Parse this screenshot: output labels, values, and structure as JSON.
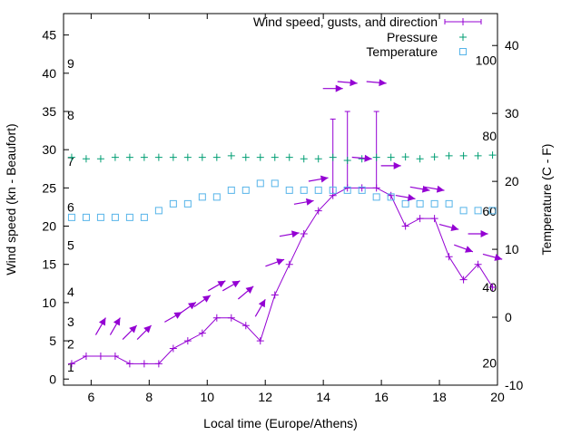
{
  "chart_data": {
    "type": "line",
    "xlabel": "Local time (Europe/Athens)",
    "ylabel": "Wind speed (kn - Beaufort)",
    "y2label": "Temperature (C - F)",
    "xlim": [
      5.05,
      20
    ],
    "ylim": [
      -0.8,
      47.8
    ],
    "y2lim": [
      -10,
      44.7
    ],
    "xticks": [
      6,
      8,
      10,
      12,
      14,
      16,
      18,
      20
    ],
    "yticks": [
      0,
      5,
      10,
      15,
      20,
      25,
      30,
      35,
      40,
      45
    ],
    "y2ticks": [
      -10,
      0,
      10,
      20,
      30,
      40
    ],
    "beaufort_labels": [
      {
        "label": "1",
        "at": 1.6
      },
      {
        "label": "2",
        "at": 4.6
      },
      {
        "label": "3",
        "at": 7.5
      },
      {
        "label": "4",
        "at": 11.4
      },
      {
        "label": "5",
        "at": 17.5
      },
      {
        "label": "6",
        "at": 22.5
      },
      {
        "label": "7",
        "at": 28.5
      },
      {
        "label": "8",
        "at": 34.5
      },
      {
        "label": "9",
        "at": 41.3
      }
    ],
    "fahrenheit_labels": [
      {
        "label": "20",
        "at": -6.7
      },
      {
        "label": "40",
        "at": 4.4
      },
      {
        "label": "60",
        "at": 15.6
      },
      {
        "label": "80",
        "at": 26.7
      },
      {
        "label": "100",
        "at": 37.8
      }
    ],
    "legend": {
      "position": "top-right",
      "entries": [
        "Wind speed, gusts, and direction",
        "Pressure",
        "Temperature"
      ]
    },
    "x_start": 5.33,
    "x_step": 0.5,
    "series": [
      {
        "name": "Wind speed, gusts, and direction",
        "color": "#9400d3",
        "values": [
          2,
          3,
          3,
          3,
          2,
          2,
          2,
          4,
          5,
          6,
          8,
          8,
          7,
          5,
          11,
          15,
          19,
          22,
          24,
          25,
          25,
          25,
          24,
          20,
          21,
          21,
          16,
          13,
          15,
          12
        ],
        "gusts": [
          null,
          null,
          null,
          null,
          null,
          null,
          null,
          null,
          null,
          null,
          null,
          null,
          null,
          null,
          null,
          null,
          null,
          null,
          34,
          35,
          null,
          35,
          null,
          null,
          null,
          null,
          null,
          null,
          null,
          null
        ]
      },
      {
        "name": "Pressure",
        "color": "#009e73",
        "values": [
          29.0,
          28.8,
          28.8,
          29.0,
          29.0,
          29.0,
          29.0,
          29.0,
          29.0,
          29.0,
          29.0,
          29.2,
          29.0,
          29.0,
          29.0,
          29.0,
          28.8,
          28.8,
          29.0,
          28.6,
          28.8,
          29.0,
          29.0,
          29.05,
          28.8,
          29.05,
          29.2,
          29.2,
          29.2,
          29.3
        ]
      },
      {
        "name": "Temperature",
        "color": "#56b4e9",
        "axis": "y2",
        "values": [
          14.7,
          14.7,
          14.7,
          14.7,
          14.7,
          14.7,
          15.7,
          16.7,
          16.7,
          17.7,
          17.7,
          18.7,
          18.7,
          19.7,
          19.7,
          18.7,
          18.7,
          18.7,
          18.7,
          18.7,
          18.7,
          17.7,
          17.7,
          16.7,
          16.7,
          16.7,
          16.7,
          15.7,
          15.7,
          15.7
        ]
      }
    ],
    "direction_arrows": [
      {
        "i": 2,
        "level": 6.9,
        "angle": 60
      },
      {
        "i": 3,
        "level": 6.9,
        "angle": 60
      },
      {
        "i": 4,
        "level": 6.1,
        "angle": 45
      },
      {
        "i": 5,
        "level": 6.1,
        "angle": 45
      },
      {
        "i": 7,
        "level": 8.1,
        "angle": 30
      },
      {
        "i": 8,
        "level": 9.3,
        "angle": 35
      },
      {
        "i": 9,
        "level": 10.2,
        "angle": 35
      },
      {
        "i": 10,
        "level": 12.2,
        "angle": 30
      },
      {
        "i": 11,
        "level": 12.2,
        "angle": 30
      },
      {
        "i": 12,
        "level": 11.3,
        "angle": 40
      },
      {
        "i": 13,
        "level": 9.3,
        "angle": 60
      },
      {
        "i": 14,
        "level": 15.2,
        "angle": 20
      },
      {
        "i": 15,
        "level": 18.9,
        "angle": 10
      },
      {
        "i": 16,
        "level": 23.1,
        "angle": 10
      },
      {
        "i": 17,
        "level": 26.1,
        "angle": 10
      },
      {
        "i": 18,
        "level": 38.0,
        "angle": 0
      },
      {
        "i": 19,
        "level": 38.8,
        "angle": -5
      },
      {
        "i": 20,
        "level": 28.9,
        "angle": -5
      },
      {
        "i": 21,
        "level": 38.8,
        "angle": -5
      },
      {
        "i": 22,
        "level": 27.9,
        "angle": 0
      },
      {
        "i": 23,
        "level": 23.8,
        "angle": -10
      },
      {
        "i": 24,
        "level": 24.9,
        "angle": -10
      },
      {
        "i": 25,
        "level": 24.9,
        "angle": -10
      },
      {
        "i": 26,
        "level": 19.9,
        "angle": -15
      },
      {
        "i": 27,
        "level": 17.1,
        "angle": -20
      },
      {
        "i": 28,
        "level": 19.0,
        "angle": 0
      },
      {
        "i": 29,
        "level": 16.0,
        "angle": -15
      }
    ]
  }
}
